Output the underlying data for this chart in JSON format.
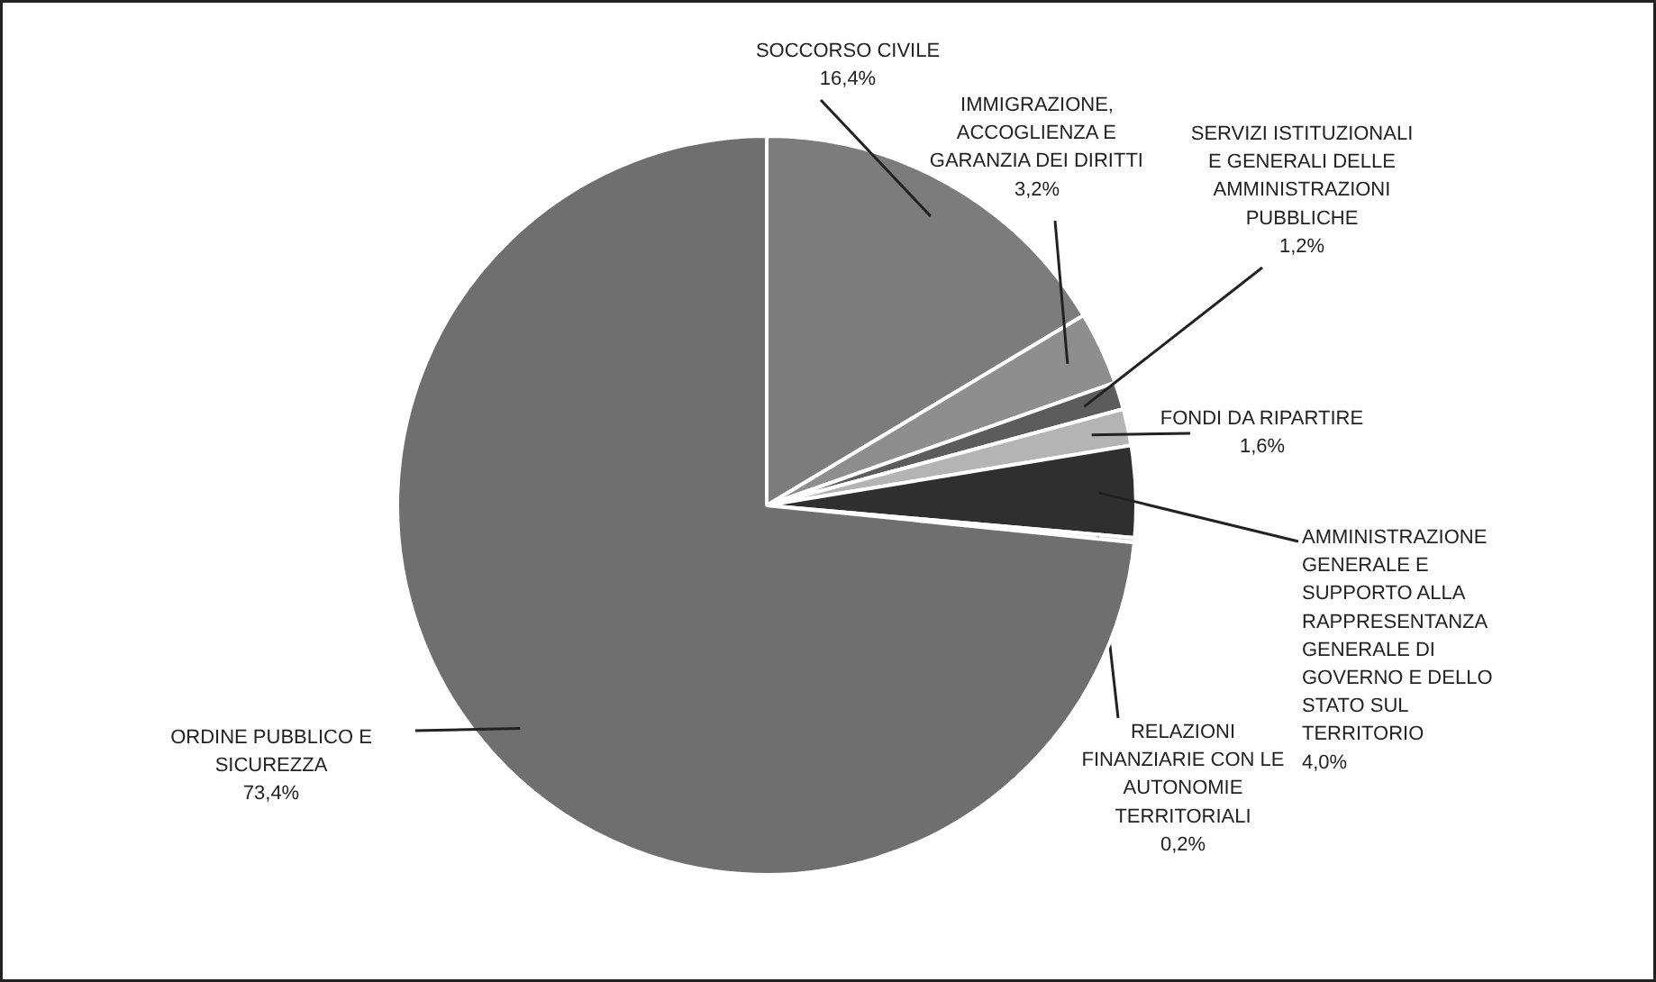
{
  "chart_data": {
    "type": "pie",
    "categories": [
      "SOCCORSO CIVILE",
      "IMMIGRAZIONE,\nACCOGLIENZA E\nGARANZIA DEI DIRITTI",
      "SERVIZI ISTITUZIONALI\nE GENERALI DELLE\nAMMINISTRAZIONI\nPUBBLICHE",
      "FONDI DA RIPARTIRE",
      "AMMINISTRAZIONE\nGENERALE E\nSUPPORTO ALLA\nRAPPRESENTANZA\nGENERALE DI\nGOVERNO E DELLO\nSTATO SUL\nTERRITORIO",
      "RELAZIONI\nFINANZIARIE CON LE\nAUTONOMIE\nTERRITORIALI",
      "ORDINE PUBBLICO E\nSICUREZZA"
    ],
    "values": [
      16.4,
      3.2,
      1.2,
      1.6,
      4.0,
      0.2,
      73.4
    ],
    "value_labels": [
      "16,4%",
      "3,2%",
      "1,2%",
      "1,6%",
      "4,0%",
      "0,2%",
      "73,4%"
    ],
    "colors": [
      "#7c7c7c",
      "#8e8e8e",
      "#5c5c5c",
      "#b4b4b4",
      "#2f2f2f",
      "#d4d4d4",
      "#6f6f6f"
    ]
  }
}
